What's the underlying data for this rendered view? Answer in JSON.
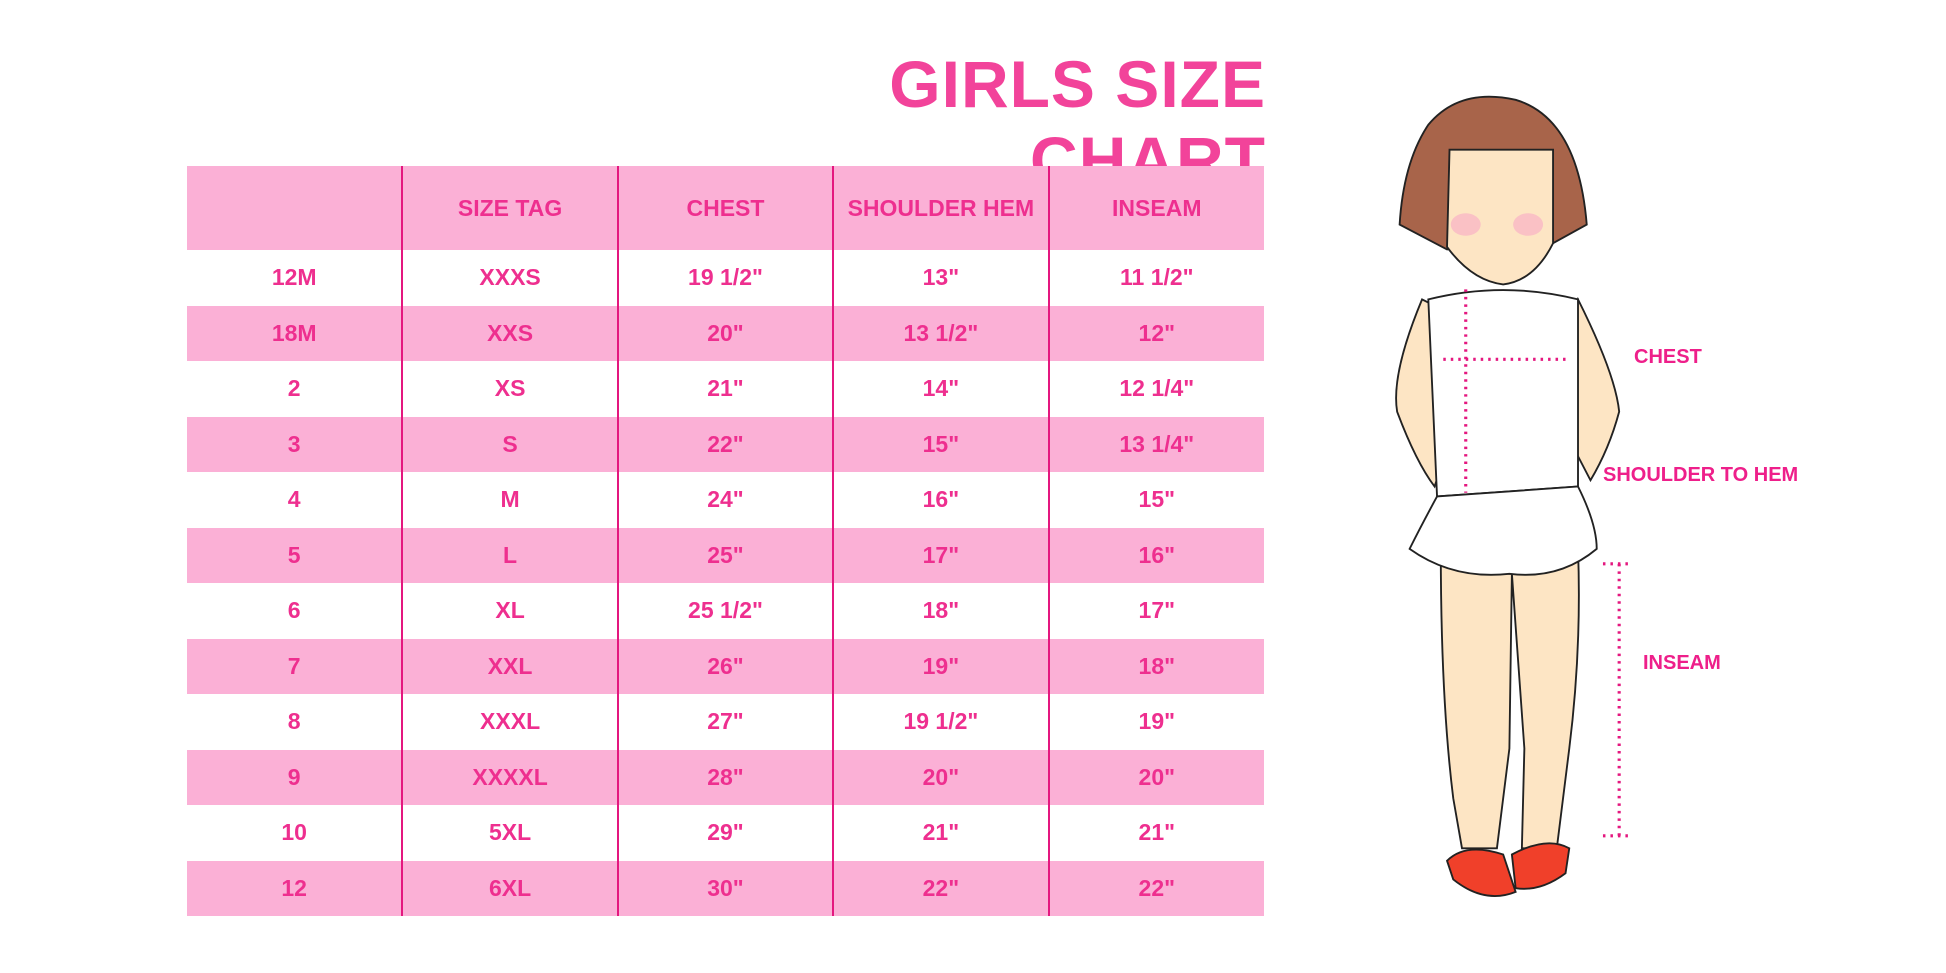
{
  "title": "GIRLS SIZE CHART",
  "table": {
    "headers": [
      "",
      "SIZE TAG",
      "CHEST",
      "SHOULDER HEM",
      "INSEAM"
    ],
    "rows": [
      [
        "12M",
        "XXXS",
        "19 1/2\"",
        "13\"",
        "11 1/2\""
      ],
      [
        "18M",
        "XXS",
        "20\"",
        "13 1/2\"",
        "12\""
      ],
      [
        "2",
        "XS",
        "21\"",
        "14\"",
        "12 1/4\""
      ],
      [
        "3",
        "S",
        "22\"",
        "15\"",
        "13 1/4\""
      ],
      [
        "4",
        "M",
        "24\"",
        "16\"",
        "15\""
      ],
      [
        "5",
        "L",
        "25\"",
        "17\"",
        "16\""
      ],
      [
        "6",
        "XL",
        "25 1/2\"",
        "18\"",
        "17\""
      ],
      [
        "7",
        "XXL",
        "26\"",
        "19\"",
        "18\""
      ],
      [
        "8",
        "XXXL",
        "27\"",
        "19 1/2\"",
        "19\""
      ],
      [
        "9",
        "XXXXL",
        "28\"",
        "20\"",
        "20\""
      ],
      [
        "10",
        "5XL",
        "29\"",
        "21\"",
        "21\""
      ],
      [
        "12",
        "6XL",
        "30\"",
        "22\"",
        "22\""
      ]
    ]
  },
  "figure": {
    "labels": {
      "chest": "CHEST",
      "shoulder_to_hem": "SHOULDER TO HEM",
      "inseam": "INSEAM"
    }
  },
  "colors": {
    "accent": "#ee2f8f",
    "row_pink": "#fbb0d6",
    "hair": "#a8644a",
    "skin": "#fde5c4",
    "shoes": "#f0402a"
  }
}
